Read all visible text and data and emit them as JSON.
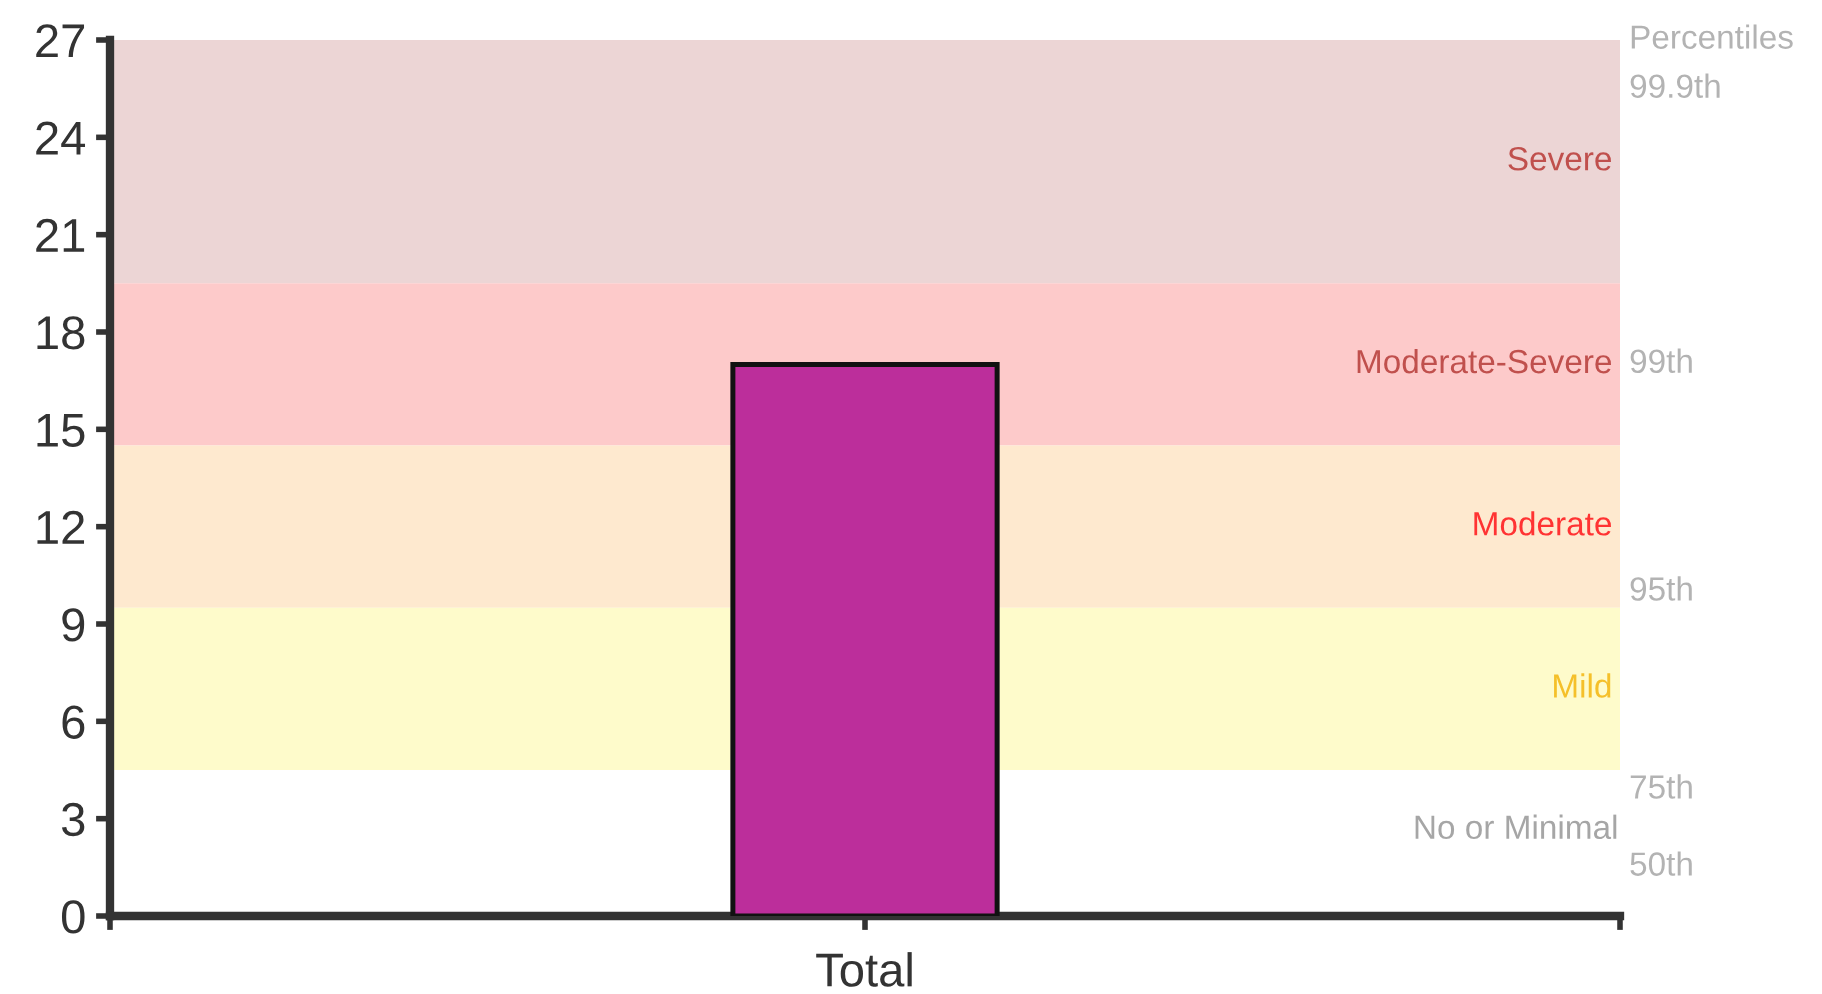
{
  "chart_data": {
    "type": "bar",
    "categories": [
      "Total"
    ],
    "values": [
      17
    ],
    "color": "#bc2e9b",
    "ylim": [
      0,
      27
    ],
    "yticks": [
      0,
      3,
      6,
      9,
      12,
      15,
      18,
      21,
      24,
      27
    ],
    "grid": false,
    "legend": false,
    "bands": [
      {
        "axis": "y",
        "from": 19.5,
        "to": 27,
        "label": "Severe",
        "color": "#ecd5d5"
      },
      {
        "axis": "y",
        "from": 14.5,
        "to": 19.5,
        "label": "Moderate-Severe",
        "color": "#fdcaca"
      },
      {
        "axis": "y",
        "from": 9.5,
        "to": 14.5,
        "label": "Moderate",
        "color": "#fee9cf"
      },
      {
        "axis": "y",
        "from": 4.5,
        "to": 9.5,
        "label": "Mild",
        "color": "#fefbcb"
      }
    ],
    "annotations": [
      "Percentiles",
      "99.9th",
      "99th",
      "95th",
      "75th",
      "50th",
      "No or Minimal"
    ]
  }
}
